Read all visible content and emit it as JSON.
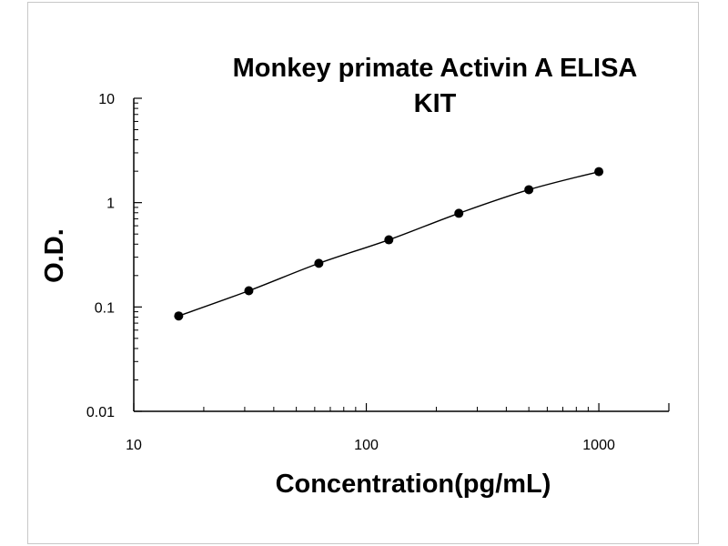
{
  "chart_data": {
    "type": "scatter",
    "title_lines": [
      "Monkey primate Activin A ELISA",
      "KIT"
    ],
    "xlabel": "Concentration(pg/mL)",
    "ylabel": "O.D.",
    "xscale": "log",
    "yscale": "log",
    "xlim": [
      10,
      2000
    ],
    "ylim": [
      0.01,
      10
    ],
    "xticks": [
      {
        "value": 10,
        "label": "10"
      },
      {
        "value": 100,
        "label": "100"
      },
      {
        "value": 1000,
        "label": "1000"
      }
    ],
    "yticks": [
      {
        "value": 10,
        "label": "10"
      },
      {
        "value": 1,
        "label": "1"
      },
      {
        "value": 0.1,
        "label": "0.1"
      },
      {
        "value": 0.01,
        "label": "0.01"
      }
    ],
    "grid": false,
    "series": [
      {
        "x": [
          15.6,
          31.25,
          62.5,
          125,
          250,
          500,
          1000
        ],
        "y": [
          0.082,
          0.143,
          0.262,
          0.44,
          0.79,
          1.33,
          1.98
        ],
        "marker": "circle",
        "line": "smooth",
        "color": "#000000"
      }
    ]
  }
}
